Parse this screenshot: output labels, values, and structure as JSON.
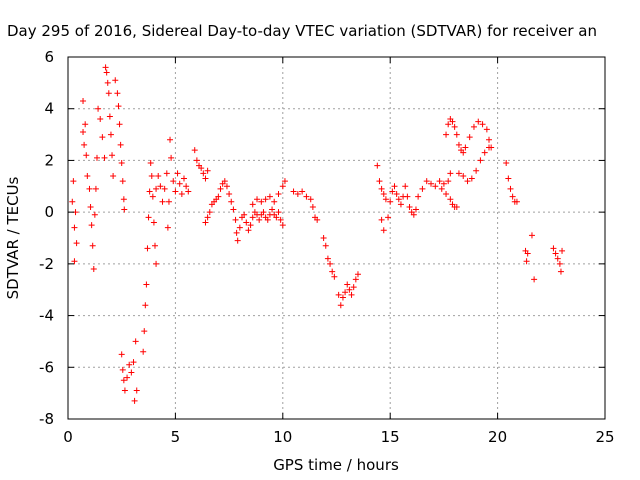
{
  "chart_data": {
    "type": "scatter",
    "title": "Day 295 of 2016, Sidereal Day-to-day VTEC variation (SDTVAR) for receiver an",
    "xlabel": "GPS time / hours",
    "ylabel": "SDTVAR / TECUs",
    "xlim": [
      0,
      25
    ],
    "ylim": [
      -8,
      6
    ],
    "xticks": [
      0,
      5,
      10,
      15,
      20,
      25
    ],
    "yticks": [
      -8,
      -6,
      -4,
      -2,
      0,
      2,
      4,
      6
    ],
    "grid": true,
    "marker": "+",
    "series": [
      {
        "name": "SDTVAR",
        "color": "#ff0000",
        "points": [
          [
            0.2,
            0.4
          ],
          [
            0.25,
            1.2
          ],
          [
            0.3,
            -0.6
          ],
          [
            0.3,
            -1.9
          ],
          [
            0.35,
            0.0
          ],
          [
            0.4,
            -1.2
          ],
          [
            0.7,
            4.3
          ],
          [
            0.7,
            3.1
          ],
          [
            0.75,
            2.6
          ],
          [
            0.8,
            3.4
          ],
          [
            0.85,
            2.2
          ],
          [
            0.9,
            1.4
          ],
          [
            1.0,
            0.9
          ],
          [
            1.05,
            0.2
          ],
          [
            1.1,
            -0.5
          ],
          [
            1.15,
            -1.3
          ],
          [
            1.2,
            -2.2
          ],
          [
            1.25,
            -0.1
          ],
          [
            1.3,
            0.9
          ],
          [
            1.35,
            2.1
          ],
          [
            1.4,
            4.0
          ],
          [
            1.5,
            3.6
          ],
          [
            1.6,
            2.9
          ],
          [
            1.7,
            2.1
          ],
          [
            1.75,
            5.6
          ],
          [
            1.8,
            5.4
          ],
          [
            1.85,
            5.0
          ],
          [
            1.9,
            4.6
          ],
          [
            1.95,
            3.7
          ],
          [
            2.0,
            3.0
          ],
          [
            2.05,
            2.2
          ],
          [
            2.1,
            1.4
          ],
          [
            2.2,
            5.1
          ],
          [
            2.3,
            4.6
          ],
          [
            2.35,
            4.1
          ],
          [
            2.4,
            3.4
          ],
          [
            2.45,
            2.6
          ],
          [
            2.5,
            1.9
          ],
          [
            2.55,
            1.2
          ],
          [
            2.6,
            0.5
          ],
          [
            2.62,
            0.1
          ],
          [
            2.5,
            -5.5
          ],
          [
            2.55,
            -6.1
          ],
          [
            2.6,
            -6.5
          ],
          [
            2.65,
            -6.9
          ],
          [
            2.75,
            -6.4
          ],
          [
            2.85,
            -5.9
          ],
          [
            2.95,
            -6.2
          ],
          [
            3.05,
            -5.8
          ],
          [
            3.15,
            -5.0
          ],
          [
            3.1,
            -7.3
          ],
          [
            3.2,
            -6.9
          ],
          [
            3.5,
            -5.4
          ],
          [
            3.55,
            -4.6
          ],
          [
            3.6,
            -3.6
          ],
          [
            3.65,
            -2.8
          ],
          [
            3.7,
            -1.4
          ],
          [
            3.75,
            -0.2
          ],
          [
            3.8,
            0.8
          ],
          [
            3.85,
            1.9
          ],
          [
            3.9,
            1.4
          ],
          [
            3.95,
            0.6
          ],
          [
            4.0,
            -0.4
          ],
          [
            4.05,
            -1.3
          ],
          [
            4.1,
            -2.0
          ],
          [
            4.1,
            0.9
          ],
          [
            4.2,
            1.4
          ],
          [
            4.3,
            1.0
          ],
          [
            4.4,
            0.4
          ],
          [
            4.5,
            0.9
          ],
          [
            4.6,
            1.5
          ],
          [
            4.65,
            -0.6
          ],
          [
            4.7,
            0.4
          ],
          [
            4.75,
            2.8
          ],
          [
            4.8,
            2.1
          ],
          [
            4.9,
            1.2
          ],
          [
            5.0,
            0.8
          ],
          [
            5.1,
            1.5
          ],
          [
            5.2,
            1.1
          ],
          [
            5.3,
            0.7
          ],
          [
            5.4,
            1.3
          ],
          [
            5.5,
            1.0
          ],
          [
            5.6,
            0.8
          ],
          [
            5.9,
            2.4
          ],
          [
            6.0,
            2.0
          ],
          [
            6.1,
            1.8
          ],
          [
            6.2,
            1.7
          ],
          [
            6.3,
            1.5
          ],
          [
            6.4,
            1.3
          ],
          [
            6.5,
            1.6
          ],
          [
            6.4,
            -0.4
          ],
          [
            6.5,
            -0.2
          ],
          [
            6.6,
            0.0
          ],
          [
            6.7,
            0.3
          ],
          [
            6.8,
            0.4
          ],
          [
            6.9,
            0.5
          ],
          [
            7.0,
            0.6
          ],
          [
            7.1,
            0.9
          ],
          [
            7.2,
            1.1
          ],
          [
            7.3,
            1.2
          ],
          [
            7.4,
            1.0
          ],
          [
            7.5,
            0.7
          ],
          [
            7.6,
            0.4
          ],
          [
            7.7,
            0.1
          ],
          [
            7.8,
            -0.3
          ],
          [
            7.85,
            -0.8
          ],
          [
            7.9,
            -1.1
          ],
          [
            8.0,
            -0.6
          ],
          [
            8.1,
            -0.2
          ],
          [
            8.2,
            -0.1
          ],
          [
            8.3,
            -0.4
          ],
          [
            8.4,
            -0.7
          ],
          [
            8.5,
            -0.5
          ],
          [
            8.6,
            -0.2
          ],
          [
            8.7,
            0.0
          ],
          [
            8.8,
            -0.1
          ],
          [
            8.9,
            -0.3
          ],
          [
            9.0,
            -0.1
          ],
          [
            9.1,
            0.0
          ],
          [
            9.2,
            -0.2
          ],
          [
            9.3,
            -0.3
          ],
          [
            9.4,
            -0.1
          ],
          [
            9.5,
            0.1
          ],
          [
            9.6,
            -0.1
          ],
          [
            9.7,
            -0.2
          ],
          [
            9.8,
            0.0
          ],
          [
            9.9,
            -0.3
          ],
          [
            10.0,
            -0.5
          ],
          [
            8.6,
            0.3
          ],
          [
            8.8,
            0.5
          ],
          [
            9.0,
            0.4
          ],
          [
            9.2,
            0.5
          ],
          [
            9.4,
            0.6
          ],
          [
            9.6,
            0.4
          ],
          [
            9.8,
            0.7
          ],
          [
            10.0,
            1.0
          ],
          [
            10.1,
            1.2
          ],
          [
            10.5,
            0.8
          ],
          [
            10.7,
            0.7
          ],
          [
            10.9,
            0.8
          ],
          [
            11.1,
            0.6
          ],
          [
            11.3,
            0.5
          ],
          [
            11.4,
            0.2
          ],
          [
            11.5,
            -0.2
          ],
          [
            11.6,
            -0.3
          ],
          [
            11.9,
            -1.0
          ],
          [
            12.0,
            -1.3
          ],
          [
            12.1,
            -1.8
          ],
          [
            12.2,
            -2.0
          ],
          [
            12.3,
            -2.3
          ],
          [
            12.4,
            -2.5
          ],
          [
            12.6,
            -3.2
          ],
          [
            12.7,
            -3.6
          ],
          [
            12.8,
            -3.3
          ],
          [
            12.9,
            -3.1
          ],
          [
            13.0,
            -2.8
          ],
          [
            13.1,
            -3.0
          ],
          [
            13.2,
            -3.2
          ],
          [
            13.3,
            -2.9
          ],
          [
            13.4,
            -2.6
          ],
          [
            13.5,
            -2.4
          ],
          [
            14.4,
            1.8
          ],
          [
            14.5,
            1.2
          ],
          [
            14.6,
            0.9
          ],
          [
            14.7,
            0.7
          ],
          [
            14.8,
            0.5
          ],
          [
            14.6,
            -0.3
          ],
          [
            14.7,
            -0.7
          ],
          [
            14.9,
            -0.2
          ],
          [
            15.0,
            0.4
          ],
          [
            15.1,
            0.8
          ],
          [
            15.2,
            1.0
          ],
          [
            15.3,
            0.7
          ],
          [
            15.4,
            0.5
          ],
          [
            15.5,
            0.3
          ],
          [
            15.6,
            0.6
          ],
          [
            15.7,
            1.0
          ],
          [
            15.8,
            0.6
          ],
          [
            15.9,
            0.2
          ],
          [
            16.0,
            0.0
          ],
          [
            16.1,
            -0.1
          ],
          [
            16.2,
            0.1
          ],
          [
            16.3,
            0.6
          ],
          [
            16.5,
            0.9
          ],
          [
            16.7,
            1.2
          ],
          [
            16.9,
            1.1
          ],
          [
            17.1,
            1.0
          ],
          [
            17.3,
            1.2
          ],
          [
            17.5,
            1.1
          ],
          [
            17.7,
            1.2
          ],
          [
            17.8,
            1.5
          ],
          [
            17.4,
            0.9
          ],
          [
            17.6,
            0.7
          ],
          [
            17.8,
            0.5
          ],
          [
            17.9,
            0.3
          ],
          [
            18.0,
            0.2
          ],
          [
            18.1,
            0.2
          ],
          [
            17.6,
            3.0
          ],
          [
            17.7,
            3.4
          ],
          [
            17.8,
            3.6
          ],
          [
            17.9,
            3.5
          ],
          [
            18.0,
            3.3
          ],
          [
            18.1,
            3.0
          ],
          [
            18.2,
            2.6
          ],
          [
            18.3,
            2.4
          ],
          [
            18.4,
            2.3
          ],
          [
            18.5,
            2.5
          ],
          [
            18.7,
            2.9
          ],
          [
            18.9,
            3.3
          ],
          [
            19.1,
            3.5
          ],
          [
            19.3,
            3.4
          ],
          [
            19.5,
            3.2
          ],
          [
            19.6,
            2.8
          ],
          [
            19.7,
            2.5
          ],
          [
            18.2,
            1.5
          ],
          [
            18.4,
            1.4
          ],
          [
            18.6,
            1.2
          ],
          [
            18.8,
            1.3
          ],
          [
            19.0,
            1.6
          ],
          [
            19.2,
            2.0
          ],
          [
            19.4,
            2.3
          ],
          [
            19.6,
            2.5
          ],
          [
            20.4,
            1.9
          ],
          [
            20.5,
            1.3
          ],
          [
            20.6,
            0.9
          ],
          [
            20.7,
            0.6
          ],
          [
            20.8,
            0.4
          ],
          [
            20.9,
            0.4
          ],
          [
            21.3,
            -1.5
          ],
          [
            21.35,
            -1.9
          ],
          [
            21.4,
            -1.6
          ],
          [
            21.6,
            -0.9
          ],
          [
            21.7,
            -2.6
          ],
          [
            22.6,
            -1.4
          ],
          [
            22.7,
            -1.6
          ],
          [
            22.8,
            -1.8
          ],
          [
            22.9,
            -2.0
          ],
          [
            23.0,
            -1.5
          ],
          [
            22.95,
            -2.3
          ]
        ]
      }
    ]
  }
}
